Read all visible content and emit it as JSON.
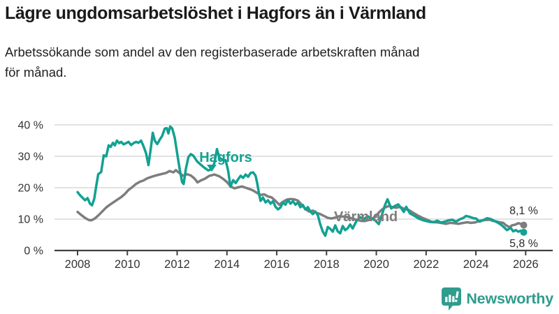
{
  "header": {
    "title": "Lägre ungdomsarbetslöshet i Hagfors än i Värmland",
    "subtitle": "Arbetssökande som andel av den registerbaserade arbetskraften månad\nför månad."
  },
  "footer": {
    "brand": "Newsworthy"
  },
  "colors": {
    "hagfors": "#12a192",
    "varmland": "#7d7d7d",
    "grid": "#d9d9d9",
    "axis": "#404040",
    "axis_text": "#333333",
    "value_label": "#2b2b2b",
    "brand": "#2f9c8e"
  },
  "chart_data": {
    "type": "line",
    "title": "Lägre ungdomsarbetslöshet i Hagfors än i Värmland",
    "xlabel": "",
    "ylabel": "",
    "x_range": [
      2007.1,
      2027.1
    ],
    "ylim": [
      0,
      44
    ],
    "grid": true,
    "legend_position": "inline-labels",
    "y_ticks": [
      {
        "value": 0,
        "label": "0 %"
      },
      {
        "value": 10,
        "label": "10 %"
      },
      {
        "value": 20,
        "label": "20 %"
      },
      {
        "value": 30,
        "label": "30 %"
      },
      {
        "value": 40,
        "label": "40 %"
      }
    ],
    "x_ticks": [
      {
        "value": 2008,
        "label": "2008"
      },
      {
        "value": 2010,
        "label": "2010"
      },
      {
        "value": 2012,
        "label": "2012"
      },
      {
        "value": 2014,
        "label": "2014"
      },
      {
        "value": 2016,
        "label": "2016"
      },
      {
        "value": 2018,
        "label": "2018"
      },
      {
        "value": 2020,
        "label": "2020"
      },
      {
        "value": 2022,
        "label": "2022"
      },
      {
        "value": 2024,
        "label": "2024"
      },
      {
        "value": 2026,
        "label": "2026"
      }
    ],
    "series": [
      {
        "key": "varmland",
        "name": "Värmland",
        "color": "#7d7d7d",
        "end_label": "8,1 %",
        "points": [
          [
            2008.0,
            12.3
          ],
          [
            2008.15,
            11.3
          ],
          [
            2008.3,
            10.4
          ],
          [
            2008.45,
            9.7
          ],
          [
            2008.55,
            9.6
          ],
          [
            2008.7,
            10.2
          ],
          [
            2008.85,
            11.3
          ],
          [
            2009.0,
            12.5
          ],
          [
            2009.15,
            13.7
          ],
          [
            2009.3,
            14.6
          ],
          [
            2009.45,
            15.4
          ],
          [
            2009.6,
            16.2
          ],
          [
            2009.75,
            17.0
          ],
          [
            2009.9,
            18.0
          ],
          [
            2010.05,
            19.3
          ],
          [
            2010.2,
            20.2
          ],
          [
            2010.35,
            21.2
          ],
          [
            2010.5,
            21.9
          ],
          [
            2010.65,
            22.3
          ],
          [
            2010.8,
            23.0
          ],
          [
            2010.95,
            23.4
          ],
          [
            2011.1,
            23.8
          ],
          [
            2011.25,
            24.1
          ],
          [
            2011.4,
            24.4
          ],
          [
            2011.55,
            24.7
          ],
          [
            2011.7,
            25.3
          ],
          [
            2011.85,
            24.9
          ],
          [
            2011.95,
            25.6
          ],
          [
            2012.1,
            24.6
          ],
          [
            2012.25,
            23.8
          ],
          [
            2012.4,
            24.3
          ],
          [
            2012.55,
            23.9
          ],
          [
            2012.7,
            22.9
          ],
          [
            2012.82,
            21.7
          ],
          [
            2012.95,
            22.3
          ],
          [
            2013.1,
            22.8
          ],
          [
            2013.3,
            23.8
          ],
          [
            2013.5,
            24.2
          ],
          [
            2013.7,
            23.6
          ],
          [
            2013.85,
            22.8
          ],
          [
            2014.0,
            21.8
          ],
          [
            2014.15,
            20.4
          ],
          [
            2014.3,
            19.8
          ],
          [
            2014.45,
            20.1
          ],
          [
            2014.6,
            20.4
          ],
          [
            2014.75,
            20.0
          ],
          [
            2014.9,
            19.6
          ],
          [
            2015.05,
            19.1
          ],
          [
            2015.2,
            18.4
          ],
          [
            2015.35,
            17.7
          ],
          [
            2015.5,
            17.9
          ],
          [
            2015.65,
            17.2
          ],
          [
            2015.8,
            16.9
          ],
          [
            2015.95,
            15.8
          ],
          [
            2016.1,
            14.6
          ],
          [
            2016.25,
            15.5
          ],
          [
            2016.4,
            16.2
          ],
          [
            2016.55,
            16.4
          ],
          [
            2016.7,
            16.3
          ],
          [
            2016.85,
            15.9
          ],
          [
            2017.0,
            14.6
          ],
          [
            2017.15,
            13.2
          ],
          [
            2017.3,
            12.4
          ],
          [
            2017.45,
            12.7
          ],
          [
            2017.6,
            12.0
          ],
          [
            2017.75,
            11.6
          ],
          [
            2017.9,
            11.0
          ],
          [
            2018.05,
            10.4
          ],
          [
            2018.2,
            10.2
          ],
          [
            2018.35,
            10.5
          ],
          [
            2018.5,
            10.9
          ],
          [
            2018.65,
            10.8
          ],
          [
            2018.8,
            10.7
          ],
          [
            2018.95,
            10.4
          ],
          [
            2019.1,
            10.0
          ],
          [
            2019.25,
            9.7
          ],
          [
            2019.4,
            9.4
          ],
          [
            2019.55,
            9.4
          ],
          [
            2019.7,
            9.7
          ],
          [
            2019.85,
            10.2
          ],
          [
            2020.0,
            11.2
          ],
          [
            2020.15,
            12.5
          ],
          [
            2020.3,
            13.5
          ],
          [
            2020.5,
            14.2
          ],
          [
            2020.65,
            13.8
          ],
          [
            2020.8,
            13.6
          ],
          [
            2020.95,
            13.9
          ],
          [
            2021.1,
            13.3
          ],
          [
            2021.3,
            12.9
          ],
          [
            2021.5,
            11.9
          ],
          [
            2021.7,
            11.0
          ],
          [
            2021.85,
            10.4
          ],
          [
            2022.0,
            9.9
          ],
          [
            2022.2,
            9.2
          ],
          [
            2022.35,
            9.0
          ],
          [
            2022.5,
            8.9
          ],
          [
            2022.65,
            8.7
          ],
          [
            2022.8,
            8.5
          ],
          [
            2022.95,
            8.8
          ],
          [
            2023.1,
            8.7
          ],
          [
            2023.3,
            8.5
          ],
          [
            2023.5,
            8.8
          ],
          [
            2023.65,
            9.0
          ],
          [
            2023.8,
            8.8
          ],
          [
            2023.95,
            8.9
          ],
          [
            2024.1,
            9.3
          ],
          [
            2024.25,
            9.6
          ],
          [
            2024.4,
            9.7
          ],
          [
            2024.55,
            9.8
          ],
          [
            2024.7,
            9.4
          ],
          [
            2024.85,
            9.2
          ],
          [
            2025.0,
            8.9
          ],
          [
            2025.1,
            8.8
          ],
          [
            2025.2,
            8.1
          ],
          [
            2025.35,
            7.4
          ],
          [
            2025.45,
            8.0
          ],
          [
            2025.6,
            8.3
          ],
          [
            2025.7,
            8.7
          ],
          [
            2025.8,
            8.5
          ],
          [
            2025.92,
            8.1
          ]
        ]
      },
      {
        "key": "hagfors",
        "name": "Hagfors",
        "color": "#12a192",
        "end_label": "5,8 %",
        "points": [
          [
            2008.0,
            18.6
          ],
          [
            2008.1,
            17.6
          ],
          [
            2008.2,
            16.8
          ],
          [
            2008.3,
            16.0
          ],
          [
            2008.4,
            16.7
          ],
          [
            2008.5,
            14.9
          ],
          [
            2008.58,
            14.4
          ],
          [
            2008.67,
            16.5
          ],
          [
            2008.75,
            20.5
          ],
          [
            2008.83,
            24.3
          ],
          [
            2008.95,
            25.0
          ],
          [
            2009.05,
            30.3
          ],
          [
            2009.15,
            30.0
          ],
          [
            2009.25,
            33.5
          ],
          [
            2009.33,
            33.0
          ],
          [
            2009.42,
            34.3
          ],
          [
            2009.5,
            33.5
          ],
          [
            2009.58,
            35.0
          ],
          [
            2009.67,
            34.2
          ],
          [
            2009.75,
            34.6
          ],
          [
            2009.85,
            33.8
          ],
          [
            2009.95,
            34.2
          ],
          [
            2010.05,
            34.6
          ],
          [
            2010.15,
            33.6
          ],
          [
            2010.25,
            34.2
          ],
          [
            2010.35,
            34.6
          ],
          [
            2010.45,
            34.3
          ],
          [
            2010.55,
            35.0
          ],
          [
            2010.65,
            33.2
          ],
          [
            2010.75,
            31.0
          ],
          [
            2010.85,
            27.2
          ],
          [
            2010.95,
            33.0
          ],
          [
            2011.02,
            37.5
          ],
          [
            2011.1,
            35.0
          ],
          [
            2011.2,
            33.9
          ],
          [
            2011.3,
            35.3
          ],
          [
            2011.4,
            36.5
          ],
          [
            2011.5,
            38.8
          ],
          [
            2011.58,
            39.0
          ],
          [
            2011.65,
            37.3
          ],
          [
            2011.72,
            39.5
          ],
          [
            2011.8,
            38.9
          ],
          [
            2011.9,
            36.0
          ],
          [
            2012.0,
            31.0
          ],
          [
            2012.1,
            26.0
          ],
          [
            2012.2,
            21.8
          ],
          [
            2012.26,
            21.2
          ],
          [
            2012.35,
            26.0
          ],
          [
            2012.45,
            29.7
          ],
          [
            2012.55,
            30.7
          ],
          [
            2012.65,
            30.2
          ],
          [
            2012.8,
            28.4
          ],
          [
            2012.95,
            27.3
          ],
          [
            2013.1,
            26.3
          ],
          [
            2013.25,
            25.5
          ],
          [
            2013.4,
            26.0
          ],
          [
            2013.5,
            28.0
          ],
          [
            2013.6,
            32.3
          ],
          [
            2013.7,
            29.5
          ],
          [
            2013.85,
            28.8
          ],
          [
            2013.95,
            28.7
          ],
          [
            2014.05,
            25.3
          ],
          [
            2014.14,
            20.3
          ],
          [
            2014.25,
            22.4
          ],
          [
            2014.35,
            21.5
          ],
          [
            2014.45,
            22.7
          ],
          [
            2014.55,
            23.8
          ],
          [
            2014.65,
            23.1
          ],
          [
            2014.75,
            24.2
          ],
          [
            2014.85,
            23.5
          ],
          [
            2014.95,
            24.7
          ],
          [
            2015.05,
            24.9
          ],
          [
            2015.15,
            23.8
          ],
          [
            2015.22,
            21.3
          ],
          [
            2015.3,
            17.6
          ],
          [
            2015.35,
            15.8
          ],
          [
            2015.45,
            16.9
          ],
          [
            2015.55,
            15.3
          ],
          [
            2015.65,
            16.0
          ],
          [
            2015.75,
            14.9
          ],
          [
            2015.85,
            15.7
          ],
          [
            2015.95,
            13.9
          ],
          [
            2016.05,
            13.1
          ],
          [
            2016.15,
            13.7
          ],
          [
            2016.25,
            15.3
          ],
          [
            2016.35,
            14.6
          ],
          [
            2016.45,
            16.1
          ],
          [
            2016.55,
            14.9
          ],
          [
            2016.65,
            15.7
          ],
          [
            2016.75,
            14.6
          ],
          [
            2016.85,
            15.3
          ],
          [
            2016.95,
            13.8
          ],
          [
            2017.05,
            14.5
          ],
          [
            2017.15,
            13.1
          ],
          [
            2017.25,
            13.8
          ],
          [
            2017.35,
            12.4
          ],
          [
            2017.45,
            11.6
          ],
          [
            2017.55,
            12.4
          ],
          [
            2017.65,
            11.3
          ],
          [
            2017.75,
            8.3
          ],
          [
            2017.85,
            6.0
          ],
          [
            2017.95,
            4.7
          ],
          [
            2018.05,
            7.5
          ],
          [
            2018.15,
            6.9
          ],
          [
            2018.25,
            6.0
          ],
          [
            2018.35,
            8.0
          ],
          [
            2018.45,
            6.1
          ],
          [
            2018.55,
            5.5
          ],
          [
            2018.65,
            7.8
          ],
          [
            2018.75,
            6.5
          ],
          [
            2018.85,
            7.1
          ],
          [
            2018.95,
            8.3
          ],
          [
            2019.05,
            7.0
          ],
          [
            2019.2,
            9.4
          ],
          [
            2019.35,
            10.6
          ],
          [
            2019.5,
            9.9
          ],
          [
            2019.65,
            10.9
          ],
          [
            2019.8,
            10.2
          ],
          [
            2019.95,
            9.6
          ],
          [
            2020.1,
            8.4
          ],
          [
            2020.25,
            12.0
          ],
          [
            2020.35,
            14.5
          ],
          [
            2020.45,
            16.3
          ],
          [
            2020.6,
            13.4
          ],
          [
            2020.75,
            14.2
          ],
          [
            2020.88,
            14.7
          ],
          [
            2021.0,
            13.5
          ],
          [
            2021.1,
            12.3
          ],
          [
            2021.2,
            13.9
          ],
          [
            2021.35,
            11.8
          ],
          [
            2021.5,
            11.2
          ],
          [
            2021.7,
            10.2
          ],
          [
            2021.85,
            9.7
          ],
          [
            2022.0,
            9.4
          ],
          [
            2022.15,
            9.1
          ],
          [
            2022.3,
            9.0
          ],
          [
            2022.45,
            9.5
          ],
          [
            2022.6,
            8.9
          ],
          [
            2022.75,
            9.2
          ],
          [
            2022.9,
            9.6
          ],
          [
            2023.05,
            9.8
          ],
          [
            2023.2,
            9.2
          ],
          [
            2023.35,
            9.9
          ],
          [
            2023.5,
            10.4
          ],
          [
            2023.6,
            11.0
          ],
          [
            2023.75,
            10.7
          ],
          [
            2023.9,
            10.3
          ],
          [
            2024.0,
            10.2
          ],
          [
            2024.15,
            9.2
          ],
          [
            2024.3,
            9.7
          ],
          [
            2024.45,
            10.3
          ],
          [
            2024.6,
            10.0
          ],
          [
            2024.7,
            9.6
          ],
          [
            2024.85,
            9.0
          ],
          [
            2025.0,
            8.3
          ],
          [
            2025.1,
            7.6
          ],
          [
            2025.25,
            6.5
          ],
          [
            2025.4,
            7.2
          ],
          [
            2025.5,
            6.1
          ],
          [
            2025.6,
            6.5
          ],
          [
            2025.7,
            6.0
          ],
          [
            2025.8,
            6.3
          ],
          [
            2025.92,
            5.8
          ]
        ]
      }
    ]
  }
}
